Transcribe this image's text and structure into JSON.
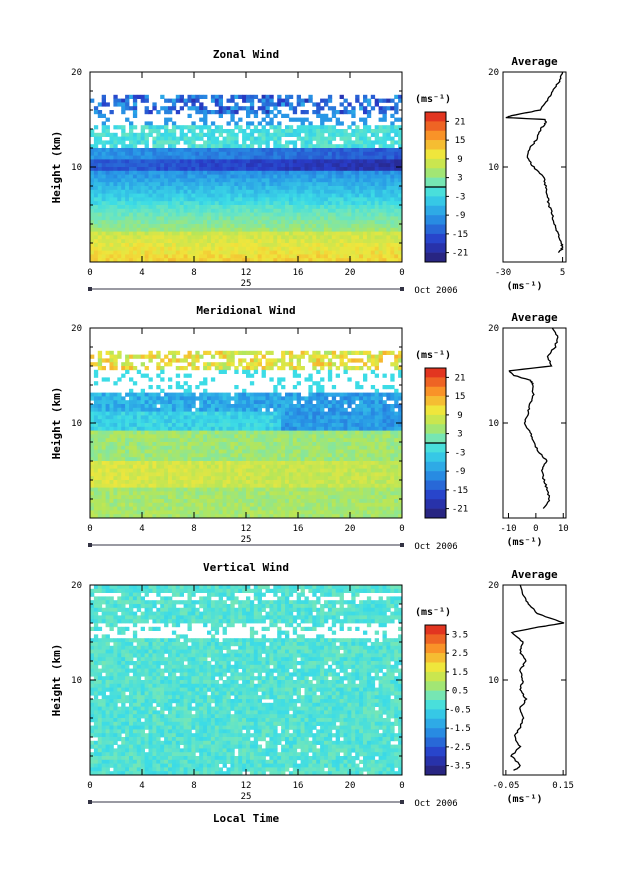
{
  "chart_data": [
    {
      "type": "heatmap",
      "title": "Zonal Wind",
      "ylabel": "Height (km)",
      "xlabel": "",
      "x_ticks": [
        "0",
        "4",
        "8",
        "12",
        "16",
        "20",
        "0"
      ],
      "y_ticks": [
        "20",
        "10"
      ],
      "day_label": "25",
      "date_label": "Oct 2006",
      "ylim": [
        0,
        20
      ],
      "xlim": [
        0,
        24
      ],
      "colorbar": {
        "unit": "(ms⁻¹)",
        "ticks": [
          "21",
          "15",
          "9",
          "3",
          "-3",
          "-9",
          "-15",
          "-21"
        ],
        "range": [
          -24,
          24
        ],
        "marker": 0
      },
      "profile": {
        "title": "Average",
        "xlabel": "(ms⁻¹)",
        "x_ticks": [
          "-30",
          "5"
        ],
        "y_ticks": [
          "20",
          "10"
        ],
        "xlim": [
          -30,
          7
        ],
        "points": [
          [
            3,
            1
          ],
          [
            5,
            1.5
          ],
          [
            4,
            2
          ],
          [
            2,
            3
          ],
          [
            0,
            4
          ],
          [
            -1,
            5
          ],
          [
            -3,
            6
          ],
          [
            -4,
            7
          ],
          [
            -5,
            8
          ],
          [
            -6,
            9
          ],
          [
            -12,
            10
          ],
          [
            -16,
            11
          ],
          [
            -14,
            12
          ],
          [
            -10,
            13
          ],
          [
            -8,
            14
          ],
          [
            -5,
            14.5
          ],
          [
            -5,
            15
          ],
          [
            -28,
            15.2
          ],
          [
            -25,
            15.4
          ],
          [
            -8,
            16
          ],
          [
            -4,
            17
          ],
          [
            -1,
            18
          ],
          [
            3,
            19
          ],
          [
            5,
            20
          ]
        ]
      }
    },
    {
      "type": "heatmap",
      "title": "Meridional Wind",
      "ylabel": "Height (km)",
      "xlabel": "",
      "x_ticks": [
        "0",
        "4",
        "8",
        "12",
        "16",
        "20",
        "0"
      ],
      "y_ticks": [
        "20",
        "10"
      ],
      "day_label": "25",
      "date_label": "Oct 2006",
      "ylim": [
        0,
        20
      ],
      "xlim": [
        0,
        24
      ],
      "colorbar": {
        "unit": "(ms⁻¹)",
        "ticks": [
          "21",
          "15",
          "9",
          "3",
          "-3",
          "-9",
          "-15",
          "-21"
        ],
        "range": [
          -24,
          24
        ],
        "marker": 0
      },
      "profile": {
        "title": "Average",
        "xlabel": "(ms⁻¹)",
        "x_ticks": [
          "-10",
          "0",
          "10"
        ],
        "y_ticks": [
          "20",
          "10"
        ],
        "xlim": [
          -12,
          11
        ],
        "points": [
          [
            3,
            1
          ],
          [
            5,
            2
          ],
          [
            4,
            3
          ],
          [
            3,
            4
          ],
          [
            2,
            5
          ],
          [
            4,
            6
          ],
          [
            1,
            7
          ],
          [
            -1,
            8
          ],
          [
            -2,
            9
          ],
          [
            -4,
            10
          ],
          [
            -3,
            11
          ],
          [
            -2,
            12
          ],
          [
            -1,
            13
          ],
          [
            -1,
            14
          ],
          [
            -2,
            14.5
          ],
          [
            -8,
            15
          ],
          [
            -10,
            15.5
          ],
          [
            6,
            16
          ],
          [
            4,
            17
          ],
          [
            7,
            18
          ],
          [
            8,
            19
          ],
          [
            6,
            20
          ]
        ]
      }
    },
    {
      "type": "heatmap",
      "title": "Vertical Wind",
      "ylabel": "Height (km)",
      "xlabel": "Local Time",
      "x_ticks": [
        "0",
        "4",
        "8",
        "12",
        "16",
        "20",
        "0"
      ],
      "y_ticks": [
        "20",
        "10"
      ],
      "day_label": "25",
      "date_label": "Oct 2006",
      "ylim": [
        0,
        20
      ],
      "xlim": [
        0,
        24
      ],
      "colorbar": {
        "unit": "(ms⁻¹)",
        "ticks": [
          "3.5",
          "2.5",
          "1.5",
          "0.5",
          "-0.5",
          "-1.5",
          "-2.5",
          "-3.5"
        ],
        "range": [
          -4,
          4
        ],
        "marker": null
      },
      "profile": {
        "title": "Average",
        "xlabel": "(ms⁻¹)",
        "x_ticks": [
          "-0.05",
          "0.15"
        ],
        "y_ticks": [
          "20",
          "10"
        ],
        "xlim": [
          -0.06,
          0.16
        ],
        "points": [
          [
            -0.02,
            0.5
          ],
          [
            0.0,
            1
          ],
          [
            -0.03,
            2
          ],
          [
            0.0,
            3
          ],
          [
            -0.02,
            4
          ],
          [
            0.0,
            5
          ],
          [
            0.01,
            6
          ],
          [
            0.0,
            7
          ],
          [
            0.02,
            8
          ],
          [
            0.0,
            9
          ],
          [
            0.01,
            10
          ],
          [
            0.0,
            11
          ],
          [
            0.02,
            12
          ],
          [
            0.0,
            13
          ],
          [
            0.01,
            14
          ],
          [
            -0.03,
            15
          ],
          [
            0.05,
            15.5
          ],
          [
            0.15,
            16
          ],
          [
            0.06,
            17
          ],
          [
            0.03,
            18
          ],
          [
            0.01,
            19
          ],
          [
            0.0,
            20
          ]
        ]
      }
    }
  ]
}
